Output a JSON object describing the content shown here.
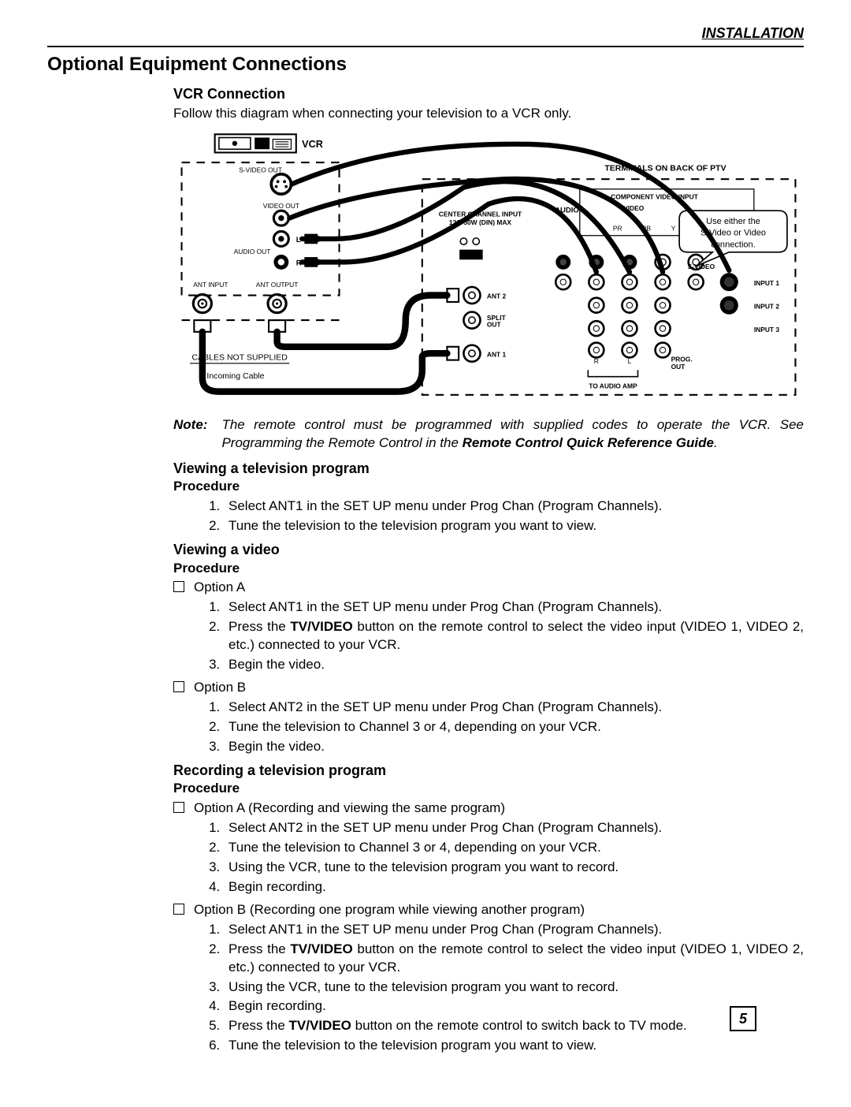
{
  "header": {
    "section": "INSTALLATION"
  },
  "main_title": "Optional Equipment Connections",
  "vcr": {
    "title": "VCR Connection",
    "intro": "Follow this diagram when connecting your television to a VCR only."
  },
  "diagram": {
    "vcr_label": "VCR",
    "svideo_out": "S-VIDEO OUT",
    "video_out": "VIDEO OUT",
    "audio_out": "AUDIO OUT",
    "l": "L",
    "r": "R",
    "ant_input": "ANT INPUT",
    "ant_output": "ANT OUTPUT",
    "cables_not_supplied": "CABLES NOT SUPPLIED",
    "incoming_cable": "Incoming Cable",
    "terminals": "TERMINALS ON BACK OF PTV",
    "component_video_input": "COMPONENT VIDEO INPUT",
    "video": "VIDEO",
    "center_channel": "CENTER CHANNEL INPUT 12Ω  50W  (DIN)  MAX",
    "audio": "AUDIO",
    "pb": "PB",
    "pr": "PR",
    "y": "Y",
    "svideo": "S-VIDEO",
    "input1": "INPUT 1",
    "input2": "INPUT 2",
    "input3": "INPUT 3",
    "ant1": "ANT 1",
    "ant2": "ANT 2",
    "split_out": "SPLIT OUT",
    "prog_out": "PROG. OUT",
    "to_audio_amp": "TO AUDIO AMP",
    "callout": "Use either the S-Video or Video connection."
  },
  "note": {
    "label": "Note:",
    "text_before": "The remote control must be programmed with supplied codes to operate the VCR. See Programming the Remote Control in the ",
    "bold": "Remote Control Quick Reference Guide",
    "text_after": "."
  },
  "view_tv": {
    "title": "Viewing a television program",
    "procedure": "Procedure",
    "steps": [
      "Select ANT1 in the SET UP menu under Prog Chan (Program Channels).",
      "Tune the television to the television program you want to view."
    ]
  },
  "view_video": {
    "title": "Viewing a video",
    "procedure": "Procedure",
    "option_a": "Option A",
    "a_steps": [
      "Select ANT1 in the SET UP menu under Prog Chan (Program Channels).",
      "Press the |TV/VIDEO| button on the remote control to select the video input (VIDEO 1, VIDEO 2, etc.) connected to your VCR.",
      "Begin the video."
    ],
    "option_b": "Option B",
    "b_steps": [
      "Select ANT2 in the SET UP menu under Prog Chan (Program Channels).",
      "Tune the television to Channel 3 or 4, depending on your VCR.",
      "Begin the video."
    ]
  },
  "record": {
    "title": "Recording a television program",
    "procedure": "Procedure",
    "option_a": "Option A (Recording and viewing the same program)",
    "a_steps": [
      "Select ANT2 in the SET UP menu under Prog Chan (Program Channels).",
      "Tune the television to Channel 3 or 4, depending on your VCR.",
      "Using the VCR, tune to the television program you want to record.",
      "Begin recording."
    ],
    "option_b": "Option B (Recording one program while viewing another program)",
    "b_steps": [
      "Select ANT1 in the SET UP menu under Prog Chan (Program Channels).",
      "Press the |TV/VIDEO| button on the remote control to select the video input (VIDEO 1, VIDEO 2, etc.) connected to your VCR.",
      "Using the VCR, tune to the television program you want to record.",
      "Begin recording.",
      "Press the |TV/VIDEO| button on the remote control to switch back to TV mode.",
      "Tune the television to the television program you want to view."
    ]
  },
  "page_number": "5"
}
